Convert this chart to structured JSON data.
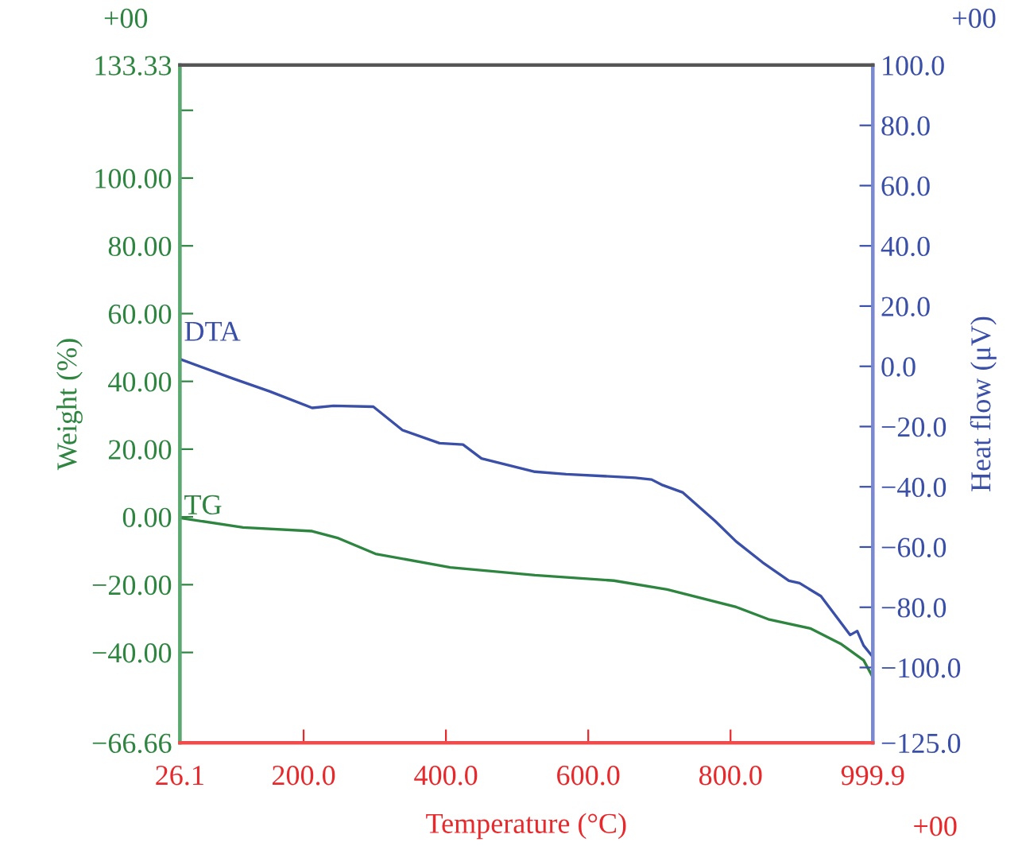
{
  "chart_data": {
    "type": "line",
    "xlabel": "Temperature (°C)",
    "ylabel": "Weight (%)",
    "y2label": "Heat flow (μV)",
    "xlim": [
      26.1,
      999.9
    ],
    "xticks": [
      26.1,
      {
        "value": 200,
        "label": "200.0"
      },
      {
        "value": 400,
        "label": "400.0"
      },
      {
        "value": 600,
        "label": "600.0"
      },
      {
        "value": 800,
        "label": "800.0"
      },
      999.9
    ],
    "ylim": [
      -66.66,
      133.33
    ],
    "yticks": [
      {
        "value": -66.66,
        "label": "−66.66"
      },
      {
        "value": -40,
        "label": "−40.00"
      },
      {
        "value": -20,
        "label": "−20.00"
      },
      {
        "value": 0,
        "label": "0.00"
      },
      {
        "value": 20,
        "label": "20.00"
      },
      {
        "value": 40,
        "label": "40.00"
      },
      {
        "value": 60,
        "label": "60.00"
      },
      {
        "value": 80,
        "label": "80.00"
      },
      {
        "value": 100,
        "label": "100.00"
      },
      {
        "value": 120,
        "label": null
      },
      133.33
    ],
    "y2lim": [
      -125,
      100
    ],
    "y2ticks": [
      {
        "value": -125,
        "label": "−125.0"
      },
      {
        "value": -100,
        "label": "−100.0"
      },
      {
        "value": -80,
        "label": "−80.0"
      },
      {
        "value": -60,
        "label": "−60.0"
      },
      {
        "value": -40,
        "label": "−40.0"
      },
      {
        "value": -20,
        "label": "−20.0"
      },
      {
        "value": 0,
        "label": "0.0"
      },
      {
        "value": 20,
        "label": "20.0"
      },
      {
        "value": 40,
        "label": "40.0"
      },
      {
        "value": 60,
        "label": "60.0"
      },
      {
        "value": 80,
        "label": "80.0"
      },
      {
        "value": 100,
        "label": "100.0"
      }
    ],
    "series": [
      {
        "color": "#2e8540",
        "x": [
          26.1,
          115,
          212,
          249,
          301,
          406,
          525,
          636,
          711,
          808,
          853,
          912,
          956,
          987,
          999.9
        ],
        "values": [
          -0.3,
          -3.1,
          -4.2,
          -6.3,
          -10.9,
          -14.9,
          -17.2,
          -18.8,
          -21.4,
          -26.6,
          -30.2,
          -32.9,
          -37.6,
          -42.3,
          -47.3
        ]
      },
      {
        "color": "#3a4fa8",
        "axis": "y2",
        "x": [
          26.1,
          100,
          152,
          212,
          242,
          298,
          339,
          391,
          424,
          450,
          525,
          569,
          666,
          689,
          703,
          733,
          778,
          808,
          845,
          882,
          897,
          927,
          968,
          978,
          987,
          999.9
        ],
        "values": [
          2.4,
          -4.0,
          -8.3,
          -13.8,
          -13.1,
          -13.4,
          -21.2,
          -25.5,
          -26.0,
          -30.6,
          -35.0,
          -35.8,
          -37.0,
          -37.6,
          -39.3,
          -41.9,
          -51.3,
          -58.2,
          -65.1,
          -71.2,
          -72.0,
          -76.3,
          -89.2,
          -87.9,
          -92.7,
          -96.5
        ]
      }
    ],
    "annotations": [
      "+00",
      "+00",
      "+00",
      "DTA",
      "TG"
    ],
    "grid": false,
    "marker": "none",
    "line_style": "solid"
  }
}
